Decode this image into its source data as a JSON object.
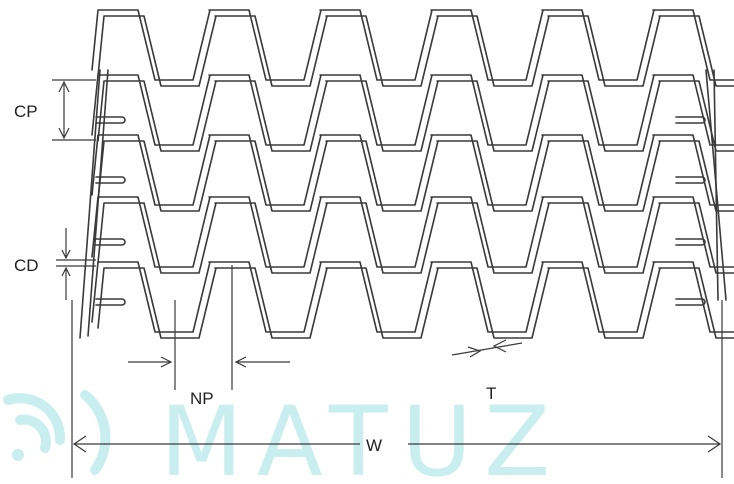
{
  "diagram": {
    "labels": {
      "cp": "CP",
      "cd": "CD",
      "np": "NP",
      "t": "T",
      "w": "W"
    },
    "watermark": "MATUZ",
    "colors": {
      "line": "#3a3a3a",
      "watermark": "#c9eef0",
      "background": "#ffffff"
    },
    "icons": [
      "watermark-logo-icon",
      "arrow-left-icon",
      "arrow-right-icon"
    ]
  }
}
